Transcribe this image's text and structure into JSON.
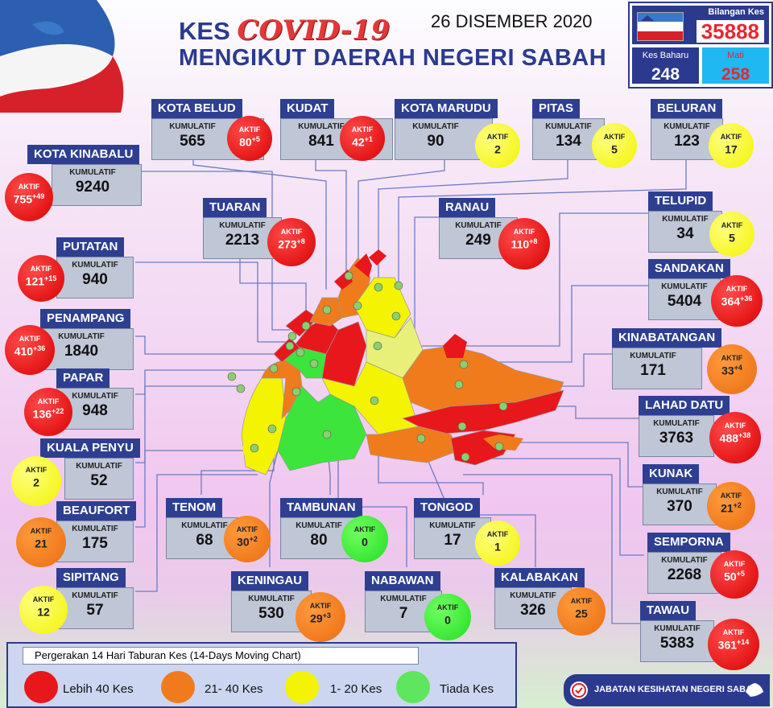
{
  "header": {
    "title_prefix": "KES ",
    "title_covid": "COVID-19",
    "title_line2": "MENGIKUT DAERAH NEGERI SABAH",
    "date": "26 DISEMBER 2020"
  },
  "summary": {
    "total_label": "Bilangan Kes",
    "total_value": "35888",
    "new_label": "Kes Baharu",
    "new_value": "248",
    "death_label": "Mati",
    "death_value": "258"
  },
  "card_labels": {
    "cumulative": "KUMULATIF",
    "active": "AKTIF"
  },
  "districts": [
    {
      "name": "KOTA BELUD",
      "cumulative": "565",
      "active": "80",
      "active_new": "+5",
      "color": "#e8171b"
    },
    {
      "name": "KUDAT",
      "cumulative": "841",
      "active": "42",
      "active_new": "+1",
      "color": "#e8171b"
    },
    {
      "name": "KOTA MARUDU",
      "cumulative": "90",
      "active": "2",
      "active_new": "",
      "color": "#f4f400"
    },
    {
      "name": "PITAS",
      "cumulative": "134",
      "active": "5",
      "active_new": "",
      "color": "#f4f400"
    },
    {
      "name": "BELURAN",
      "cumulative": "123",
      "active": "17",
      "active_new": "",
      "color": "#f4f400"
    },
    {
      "name": "KOTA KINABALU",
      "cumulative": "9240",
      "active": "755",
      "active_new": "+49",
      "color": "#e8171b"
    },
    {
      "name": "TUARAN",
      "cumulative": "2213",
      "active": "273",
      "active_new": "+8",
      "color": "#e8171b"
    },
    {
      "name": "RANAU",
      "cumulative": "249",
      "active": "110",
      "active_new": "+8",
      "color": "#e8171b"
    },
    {
      "name": "TELUPID",
      "cumulative": "34",
      "active": "5",
      "active_new": "",
      "color": "#f4f400"
    },
    {
      "name": "PUTATAN",
      "cumulative": "940",
      "active": "121",
      "active_new": "+15",
      "color": "#e8171b"
    },
    {
      "name": "SANDAKAN",
      "cumulative": "5404",
      "active": "364",
      "active_new": "+36",
      "color": "#e8171b"
    },
    {
      "name": "PENAMPANG",
      "cumulative": "1840",
      "active": "410",
      "active_new": "+36",
      "color": "#e8171b"
    },
    {
      "name": "KINABATANGAN",
      "cumulative": "171",
      "active": "33",
      "active_new": "+4",
      "color": "#f07b1c"
    },
    {
      "name": "PAPAR",
      "cumulative": "948",
      "active": "136",
      "active_new": "+22",
      "color": "#e8171b"
    },
    {
      "name": "LAHAD DATU",
      "cumulative": "3763",
      "active": "488",
      "active_new": "+38",
      "color": "#e8171b"
    },
    {
      "name": "KUALA PENYU",
      "cumulative": "52",
      "active": "2",
      "active_new": "",
      "color": "#f4f400"
    },
    {
      "name": "TENOM",
      "cumulative": "68",
      "active": "30",
      "active_new": "+2",
      "color": "#f07b1c"
    },
    {
      "name": "TAMBUNAN",
      "cumulative": "80",
      "active": "0",
      "active_new": "",
      "color": "#3ce43c"
    },
    {
      "name": "TONGOD",
      "cumulative": "17",
      "active": "1",
      "active_new": "",
      "color": "#f4f400"
    },
    {
      "name": "KUNAK",
      "cumulative": "370",
      "active": "21",
      "active_new": "+2",
      "color": "#f07b1c"
    },
    {
      "name": "BEAUFORT",
      "cumulative": "175",
      "active": "21",
      "active_new": "",
      "color": "#f07b1c"
    },
    {
      "name": "SEMPORNA",
      "cumulative": "2268",
      "active": "50",
      "active_new": "+5",
      "color": "#e8171b"
    },
    {
      "name": "SIPITANG",
      "cumulative": "57",
      "active": "12",
      "active_new": "",
      "color": "#f4f400"
    },
    {
      "name": "KENINGAU",
      "cumulative": "530",
      "active": "29",
      "active_new": "+3",
      "color": "#f07b1c"
    },
    {
      "name": "NABAWAN",
      "cumulative": "7",
      "active": "0",
      "active_new": "",
      "color": "#3ce43c"
    },
    {
      "name": "KALABAKAN",
      "cumulative": "326",
      "active": "25",
      "active_new": "",
      "color": "#f07b1c"
    },
    {
      "name": "TAWAU",
      "cumulative": "5383",
      "active": "361",
      "active_new": "+14",
      "color": "#e8171b"
    }
  ],
  "legend": {
    "title": "Pergerakan 14 Hari Taburan Kes (14-Days Moving Chart)",
    "items": [
      {
        "label": "Lebih 40 Kes",
        "color": "#e8171b"
      },
      {
        "label": "21- 40 Kes",
        "color": "#f07b1c"
      },
      {
        "label": "1- 20 Kes",
        "color": "#f4f400"
      },
      {
        "label": "Tiada Kes",
        "color": "#5ee65e"
      }
    ]
  },
  "footer": {
    "org": "JABATAN KESIHATAN NEGERI SABAH"
  },
  "icons": {
    "map": "sabah-map-icon",
    "flag": "sabah-flag-icon",
    "logo": "moh-logo-icon"
  }
}
